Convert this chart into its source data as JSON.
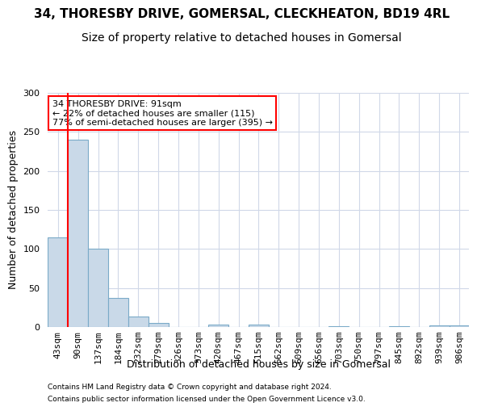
{
  "title1": "34, THORESBY DRIVE, GOMERSAL, CLECKHEATON, BD19 4RL",
  "title2": "Size of property relative to detached houses in Gomersal",
  "xlabel": "Distribution of detached houses by size in Gomersal",
  "ylabel": "Number of detached properties",
  "bin_labels": [
    "43sqm",
    "90sqm",
    "137sqm",
    "184sqm",
    "232sqm",
    "279sqm",
    "326sqm",
    "373sqm",
    "420sqm",
    "467sqm",
    "515sqm",
    "562sqm",
    "609sqm",
    "656sqm",
    "703sqm",
    "750sqm",
    "797sqm",
    "845sqm",
    "892sqm",
    "939sqm",
    "986sqm"
  ],
  "bar_heights": [
    115,
    240,
    100,
    37,
    13,
    5,
    0,
    0,
    3,
    0,
    3,
    0,
    0,
    0,
    1,
    0,
    0,
    1,
    0,
    2,
    2
  ],
  "bar_color": "#c9d9e8",
  "bar_edge_color": "#7aaac8",
  "property_line_x": 1,
  "property_sqm": 91,
  "annotation_text": "34 THORESBY DRIVE: 91sqm\n← 22% of detached houses are smaller (115)\n77% of semi-detached houses are larger (395) →",
  "annotation_box_color": "white",
  "annotation_box_edge": "red",
  "red_line_color": "red",
  "ylim": [
    0,
    300
  ],
  "yticks": [
    0,
    50,
    100,
    150,
    200,
    250,
    300
  ],
  "grid_color": "#d0d8e8",
  "footer1": "Contains HM Land Registry data © Crown copyright and database right 2024.",
  "footer2": "Contains public sector information licensed under the Open Government Licence v3.0.",
  "title1_fontsize": 11,
  "title2_fontsize": 10,
  "axis_label_fontsize": 9,
  "tick_fontsize": 8
}
